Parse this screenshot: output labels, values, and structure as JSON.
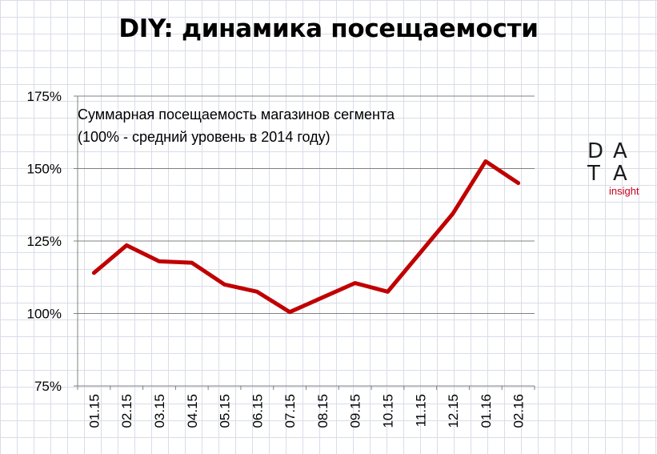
{
  "title": "DIY: динамика посещаемости",
  "logo": {
    "letters": [
      "D",
      "A",
      "T",
      "A"
    ],
    "sub": "insight"
  },
  "chart_data": {
    "type": "line",
    "note": [
      "Суммарная посещаемость магазинов сегмента",
      "(100% - средний уровень в 2014 году)"
    ],
    "categories": [
      "01.15",
      "02.15",
      "03.15",
      "04.15",
      "05.15",
      "06.15",
      "07.15",
      "08.15",
      "09.15",
      "10.15",
      "11.15",
      "12.15",
      "01.16",
      "02.16"
    ],
    "series": [
      {
        "values": [
          114,
          123.5,
          118,
          117.5,
          110,
          107.5,
          100.5,
          105.5,
          110.5,
          107.5,
          121,
          134.5,
          152.5,
          145
        ]
      }
    ],
    "y_ticks": [
      "75%",
      "100%",
      "125%",
      "150%",
      "175%"
    ],
    "y_tick_values": [
      75,
      100,
      125,
      150,
      175
    ],
    "ylim": [
      75,
      175
    ],
    "line_color": "#c00000",
    "grid": true
  }
}
